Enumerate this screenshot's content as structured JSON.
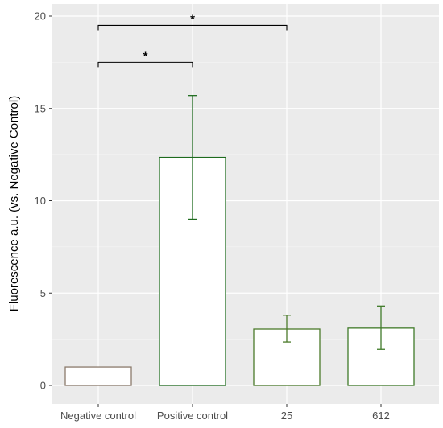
{
  "chart_data": {
    "type": "bar",
    "title": "",
    "xlabel": "",
    "ylabel": "Fluorescence a.u. (vs. Negative Control)",
    "ylim": [
      0,
      20.5
    ],
    "yticks": [
      0,
      5,
      10,
      15,
      20
    ],
    "grid": true,
    "categories": [
      "Negative control",
      "Positive control",
      "25",
      "612"
    ],
    "values": [
      1.0,
      12.35,
      3.05,
      3.1
    ],
    "error_low": [
      null,
      9.0,
      2.35,
      1.95
    ],
    "error_high": [
      null,
      15.7,
      3.8,
      4.3
    ],
    "bar_fill": "#ffffff",
    "bar_outline_colors": [
      "#8b7a6b",
      "#1e6b1e",
      "#4b7a2a",
      "#3f7a28"
    ],
    "panel_background": "#ebebeb",
    "significance": [
      {
        "from": 0,
        "to": 1,
        "y": 17.5,
        "label": "*"
      },
      {
        "from": 0,
        "to": 2,
        "y": 19.5,
        "label": "*"
      }
    ]
  }
}
